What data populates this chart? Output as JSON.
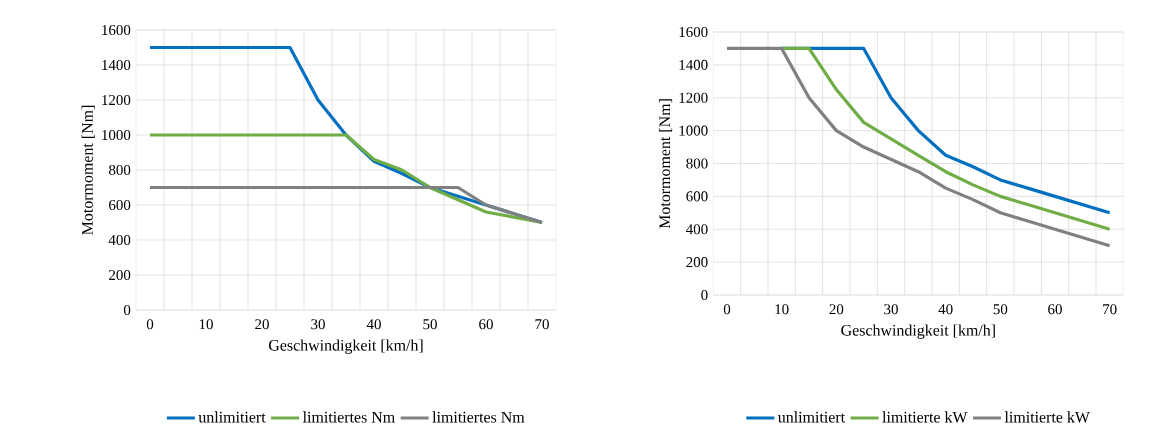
{
  "chart_data": [
    {
      "type": "line",
      "xlabel": "Geschwindigkeit  [km/h]",
      "ylabel": "Motormoment [Nm]",
      "x": [
        0,
        5,
        10,
        15,
        20,
        25,
        30,
        35,
        40,
        45,
        50,
        55,
        60,
        65,
        70
      ],
      "xlim": [
        -2.5,
        72.5
      ],
      "ylim": [
        0,
        1600
      ],
      "xticks": [
        0,
        10,
        20,
        30,
        40,
        50,
        60,
        70
      ],
      "yticks": [
        0,
        200,
        400,
        600,
        800,
        1000,
        1200,
        1400,
        1600
      ],
      "grid": true,
      "legend": "bottom",
      "series": [
        {
          "name": "unlimitiert",
          "color": "#0070c0",
          "values": [
            1500,
            1500,
            1500,
            1500,
            1500,
            1500,
            1200,
            1000,
            850,
            780,
            700,
            650,
            600,
            550,
            500
          ]
        },
        {
          "name": "limitiertes Nm",
          "color": "#70ad47",
          "values": [
            1000,
            1000,
            1000,
            1000,
            1000,
            1000,
            1000,
            1000,
            860,
            800,
            700,
            630,
            560,
            530,
            500
          ]
        },
        {
          "name": "limitiertes Nm",
          "color": "#808080",
          "values": [
            700,
            700,
            700,
            700,
            700,
            700,
            700,
            700,
            700,
            700,
            700,
            700,
            600,
            550,
            500
          ]
        }
      ]
    },
    {
      "type": "line",
      "xlabel": "Geschwindigkeit  [km/h]",
      "ylabel": "Motormoment [Nm]",
      "x": [
        0,
        5,
        10,
        15,
        20,
        25,
        30,
        35,
        40,
        45,
        50,
        55,
        60,
        65,
        70
      ],
      "xlim": [
        -2.5,
        72.5
      ],
      "ylim": [
        0,
        1600
      ],
      "xticks": [
        0,
        10,
        20,
        30,
        40,
        50,
        60,
        70
      ],
      "yticks": [
        0,
        200,
        400,
        600,
        800,
        1000,
        1200,
        1400,
        1600
      ],
      "grid": true,
      "legend": "bottom",
      "series": [
        {
          "name": "unlimitiert",
          "color": "#0070c0",
          "values": [
            null,
            null,
            1500,
            1500,
            1500,
            1500,
            1200,
            1000,
            850,
            780,
            700,
            650,
            600,
            550,
            500
          ]
        },
        {
          "name": "limitierte kW",
          "color": "#70ad47",
          "values": [
            null,
            null,
            1500,
            1500,
            1250,
            1050,
            950,
            850,
            750,
            670,
            600,
            550,
            500,
            450,
            400
          ]
        },
        {
          "name": "limitierte kW",
          "color": "#808080",
          "values": [
            1500,
            1500,
            1500,
            1200,
            1000,
            900,
            825,
            750,
            650,
            580,
            500,
            450,
            400,
            350,
            300
          ]
        }
      ]
    }
  ]
}
